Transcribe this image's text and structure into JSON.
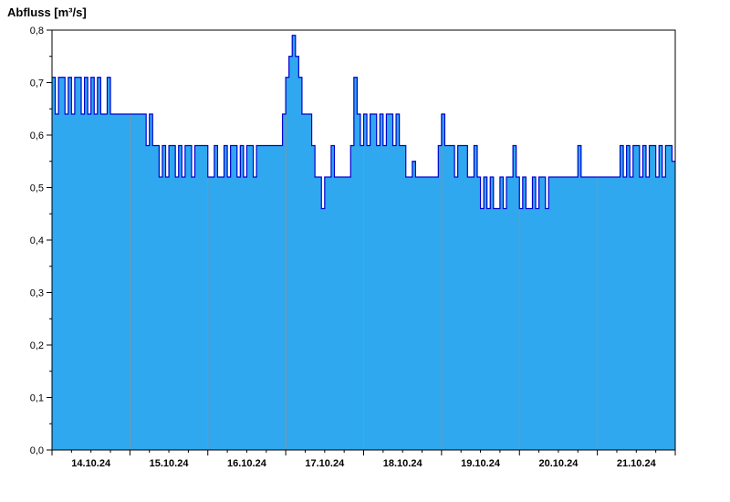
{
  "title": "Abfluss [m³/s]",
  "chart_data": {
    "type": "area",
    "step": true,
    "title": "Abfluss [m³/s]",
    "ylabel": "Abfluss [m³/s]",
    "xlabel": "",
    "ylim": [
      0,
      0.8
    ],
    "ytick_step": 0.1,
    "ytick_minor": 0.05,
    "ytick_labels": [
      "0,0",
      "0,1",
      "0,2",
      "0,3",
      "0,4",
      "0,5",
      "0,6",
      "0,7",
      "0,8"
    ],
    "x_categories": [
      "14.10.24",
      "15.10.24",
      "16.10.24",
      "17.10.24",
      "18.10.24",
      "19.10.24",
      "20.10.24",
      "21.10.24"
    ],
    "points_per_day": 24,
    "xtick_minor_hours": 6,
    "grid": "vertical-day-boundaries",
    "legend": "none",
    "fill_color": "#2FA8F0",
    "line_color": "#0000D0",
    "grid_color": "#909090",
    "axis_color": "#000000",
    "values": [
      0.71,
      0.64,
      0.71,
      0.71,
      0.64,
      0.71,
      0.64,
      0.71,
      0.71,
      0.64,
      0.71,
      0.64,
      0.71,
      0.64,
      0.71,
      0.64,
      0.64,
      0.71,
      0.64,
      0.64,
      0.64,
      0.64,
      0.64,
      0.64,
      0.64,
      0.64,
      0.64,
      0.64,
      0.64,
      0.58,
      0.64,
      0.58,
      0.58,
      0.52,
      0.58,
      0.52,
      0.58,
      0.58,
      0.52,
      0.58,
      0.52,
      0.58,
      0.58,
      0.52,
      0.58,
      0.58,
      0.58,
      0.58,
      0.52,
      0.52,
      0.58,
      0.52,
      0.52,
      0.58,
      0.52,
      0.58,
      0.58,
      0.52,
      0.58,
      0.52,
      0.58,
      0.58,
      0.52,
      0.58,
      0.58,
      0.58,
      0.58,
      0.58,
      0.58,
      0.58,
      0.58,
      0.64,
      0.71,
      0.75,
      0.79,
      0.75,
      0.71,
      0.64,
      0.64,
      0.64,
      0.58,
      0.52,
      0.52,
      0.46,
      0.52,
      0.52,
      0.58,
      0.52,
      0.52,
      0.52,
      0.52,
      0.52,
      0.58,
      0.71,
      0.64,
      0.58,
      0.64,
      0.58,
      0.64,
      0.64,
      0.58,
      0.64,
      0.58,
      0.64,
      0.64,
      0.58,
      0.64,
      0.58,
      0.58,
      0.52,
      0.52,
      0.55,
      0.52,
      0.52,
      0.52,
      0.52,
      0.52,
      0.52,
      0.52,
      0.58,
      0.64,
      0.58,
      0.58,
      0.58,
      0.52,
      0.58,
      0.58,
      0.58,
      0.52,
      0.52,
      0.58,
      0.52,
      0.46,
      0.52,
      0.46,
      0.52,
      0.46,
      0.46,
      0.52,
      0.46,
      0.52,
      0.52,
      0.58,
      0.52,
      0.46,
      0.52,
      0.46,
      0.46,
      0.52,
      0.46,
      0.52,
      0.52,
      0.46,
      0.52,
      0.52,
      0.52,
      0.52,
      0.52,
      0.52,
      0.52,
      0.52,
      0.52,
      0.58,
      0.52,
      0.52,
      0.52,
      0.52,
      0.52,
      0.52,
      0.52,
      0.52,
      0.52,
      0.52,
      0.52,
      0.52,
      0.58,
      0.52,
      0.58,
      0.52,
      0.58,
      0.58,
      0.52,
      0.58,
      0.52,
      0.58,
      0.58,
      0.52,
      0.58,
      0.52,
      0.58,
      0.58,
      0.55
    ]
  }
}
